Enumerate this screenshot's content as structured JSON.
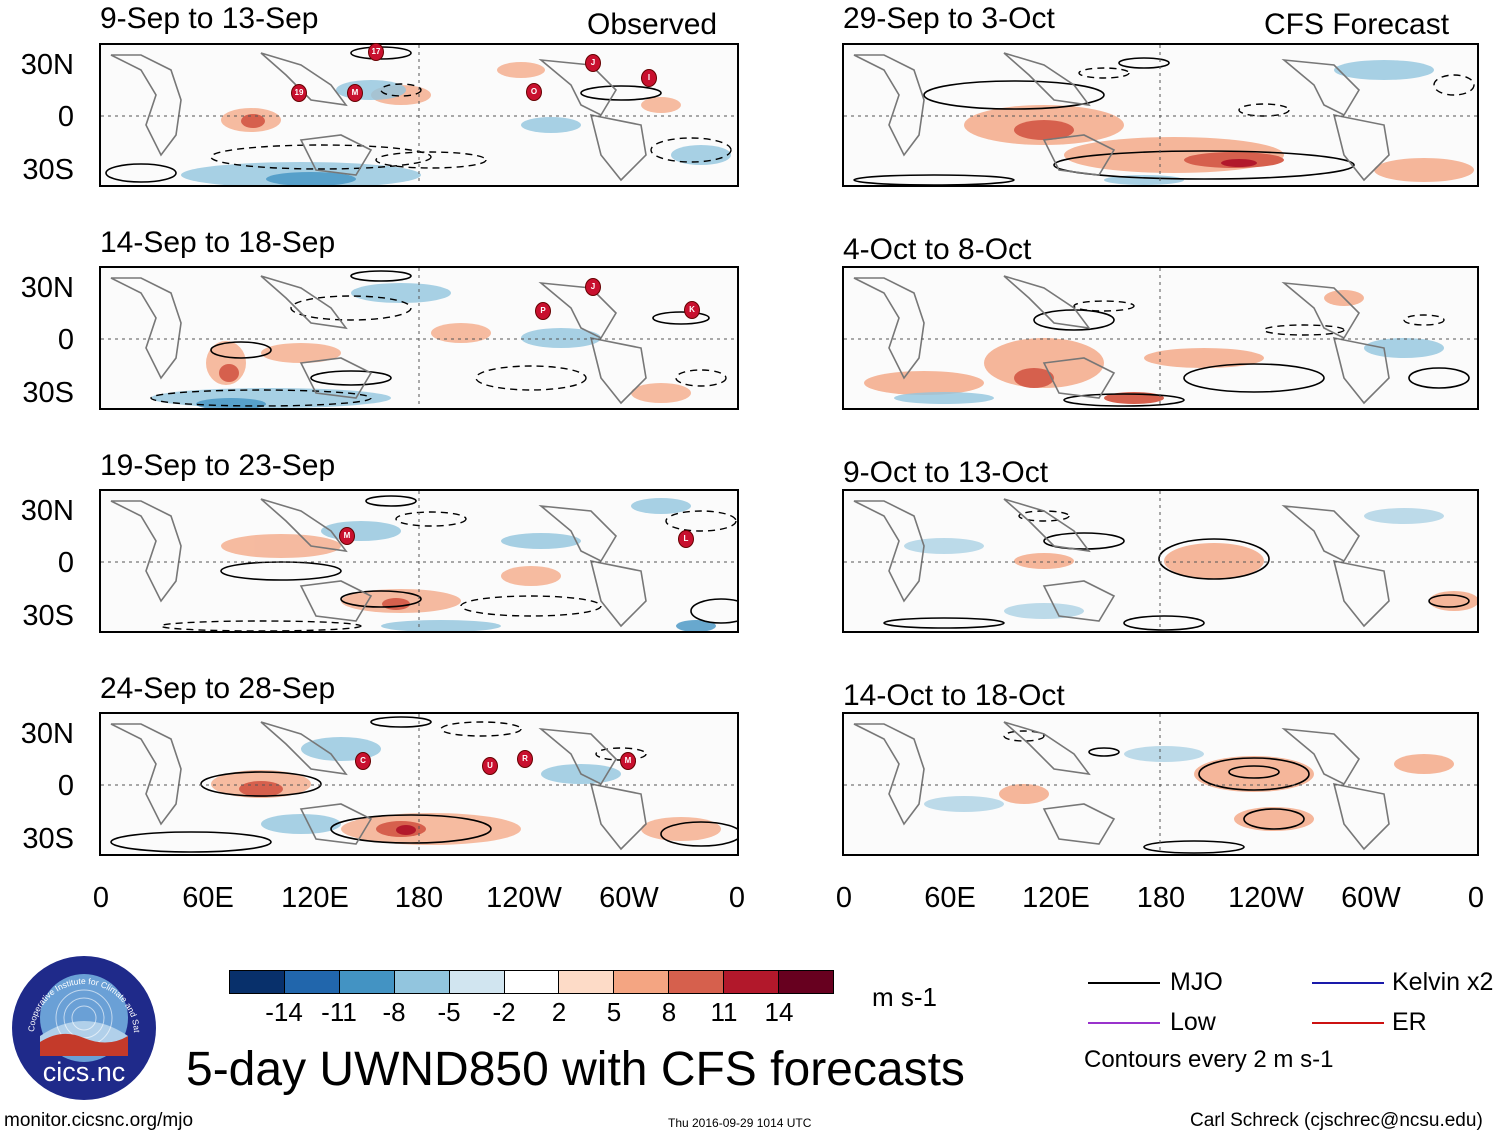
{
  "header": {
    "observed_label": "Observed",
    "forecast_label": "CFS Forecast"
  },
  "observed_panels": [
    {
      "title": "9-Sep to 13-Sep",
      "storms": [
        "17",
        "J",
        "I",
        "19",
        "M",
        "O"
      ]
    },
    {
      "title": "14-Sep to 18-Sep",
      "storms": [
        "J",
        "P",
        "K"
      ]
    },
    {
      "title": "19-Sep to 23-Sep",
      "storms": [
        "M",
        "L"
      ]
    },
    {
      "title": "24-Sep to 28-Sep",
      "storms": [
        "C",
        "U",
        "R",
        "M"
      ]
    }
  ],
  "forecast_panels": [
    {
      "title": "29-Sep to 3-Oct"
    },
    {
      "title": "4-Oct to 8-Oct"
    },
    {
      "title": "9-Oct to 13-Oct"
    },
    {
      "title": "14-Oct to 18-Oct"
    }
  ],
  "lat_labels": [
    "30N",
    "0",
    "30S"
  ],
  "lon_labels": [
    "0",
    "60E",
    "120E",
    "180",
    "120W",
    "60W",
    "0"
  ],
  "colorbar": {
    "ticks": [
      "-14",
      "-11",
      "-8",
      "-5",
      "-2",
      "2",
      "5",
      "8",
      "11",
      "14"
    ],
    "units": "m s-1",
    "colors": [
      "#08306b",
      "#2166ac",
      "#4393c3",
      "#92c5de",
      "#d1e5f0",
      "#ffffff",
      "#fddbc7",
      "#f4a582",
      "#d6604d",
      "#b2182b",
      "#67001f"
    ]
  },
  "legend": {
    "mjo": "MJO",
    "kelvin": "Kelvin x2",
    "low": "Low",
    "er": "ER",
    "contours_note": "Contours every 2 m s-1",
    "colors": {
      "mjo": "#000000",
      "kelvin": "#1a1aaa",
      "low": "#9932cc",
      "er": "#cc1111"
    }
  },
  "title": "5-day UWND850 with CFS forecasts",
  "logo": {
    "text": "cics.nc",
    "arc_text": "Cooperative Institute for Climate and Satellites"
  },
  "footer": {
    "url": "monitor.cicsnc.org/mjo",
    "timestamp": "Thu 2016-09-29 1014 UTC",
    "author": "Carl Schreck (cjschrec@ncsu.edu)"
  }
}
